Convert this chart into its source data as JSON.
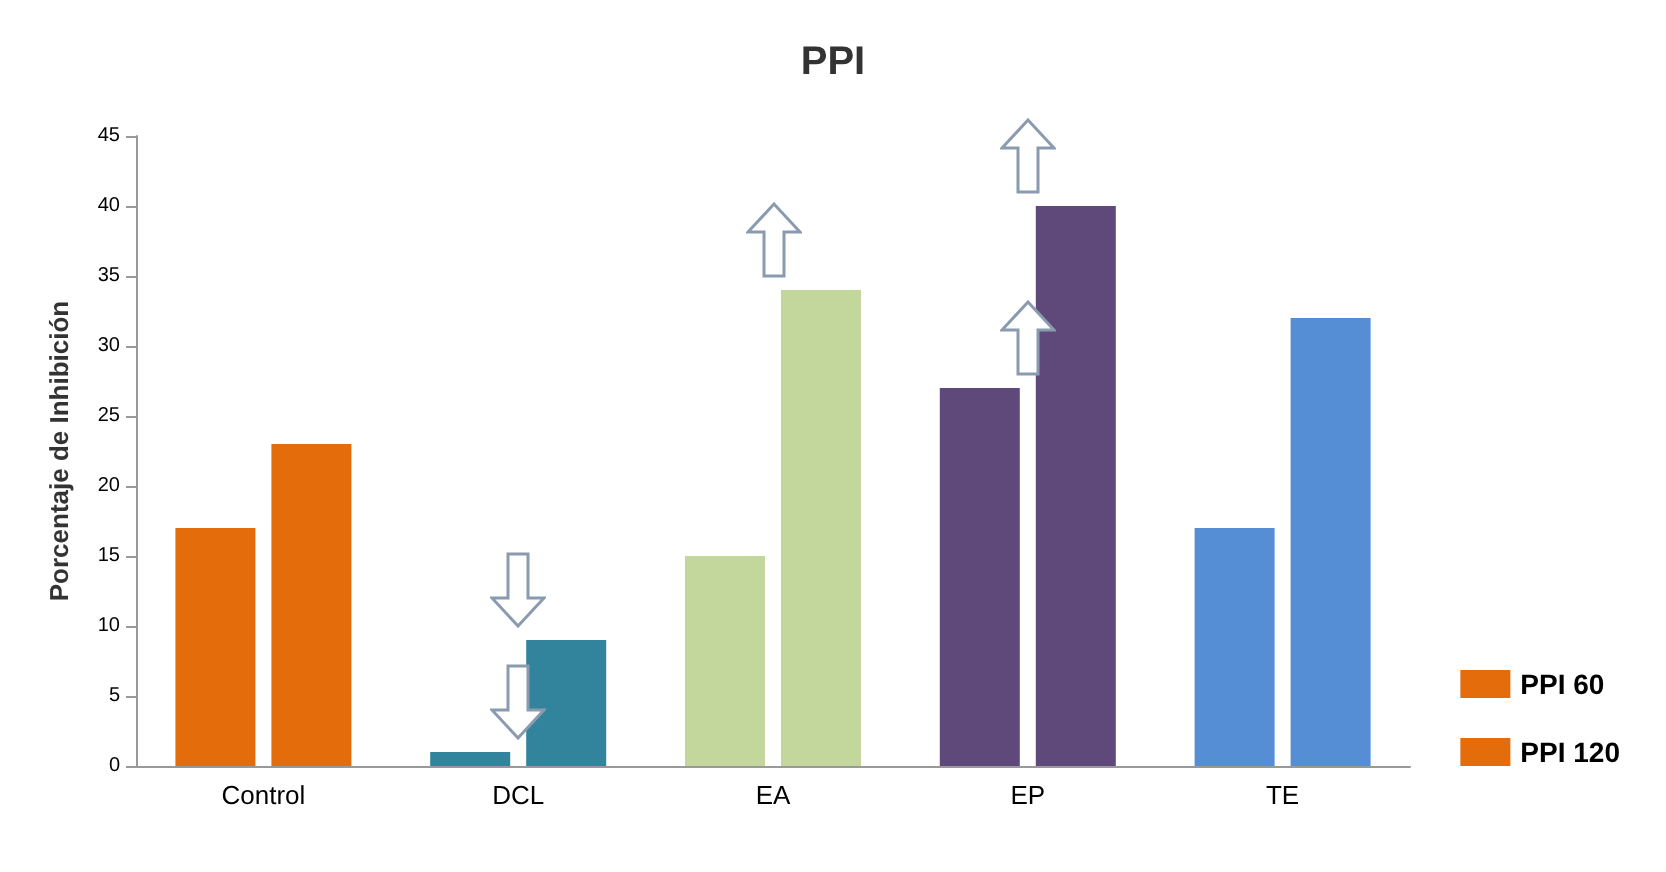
{
  "chart_data": {
    "type": "bar",
    "title": "PPI",
    "ylabel": "Porcentaje de Inhibición",
    "categories": [
      "Control",
      "DCL",
      "EA",
      "EP",
      "TE"
    ],
    "series": [
      {
        "name": "PPI 60",
        "colors": [
          "#e46c0a",
          "#31849b",
          "#c3d69b",
          "#5f497a",
          "#558ed5"
        ],
        "values": [
          17,
          1,
          15,
          27,
          17
        ]
      },
      {
        "name": "PPI 120",
        "colors": [
          "#e46c0a",
          "#31849b",
          "#c3d69b",
          "#5f497a",
          "#558ed5"
        ],
        "values": [
          23,
          9,
          34,
          40,
          32
        ]
      }
    ],
    "ylim": [
      0,
      45
    ],
    "yticks": [
      0,
      5,
      10,
      15,
      20,
      25,
      30,
      35,
      40,
      45
    ],
    "legend": "right"
  }
}
